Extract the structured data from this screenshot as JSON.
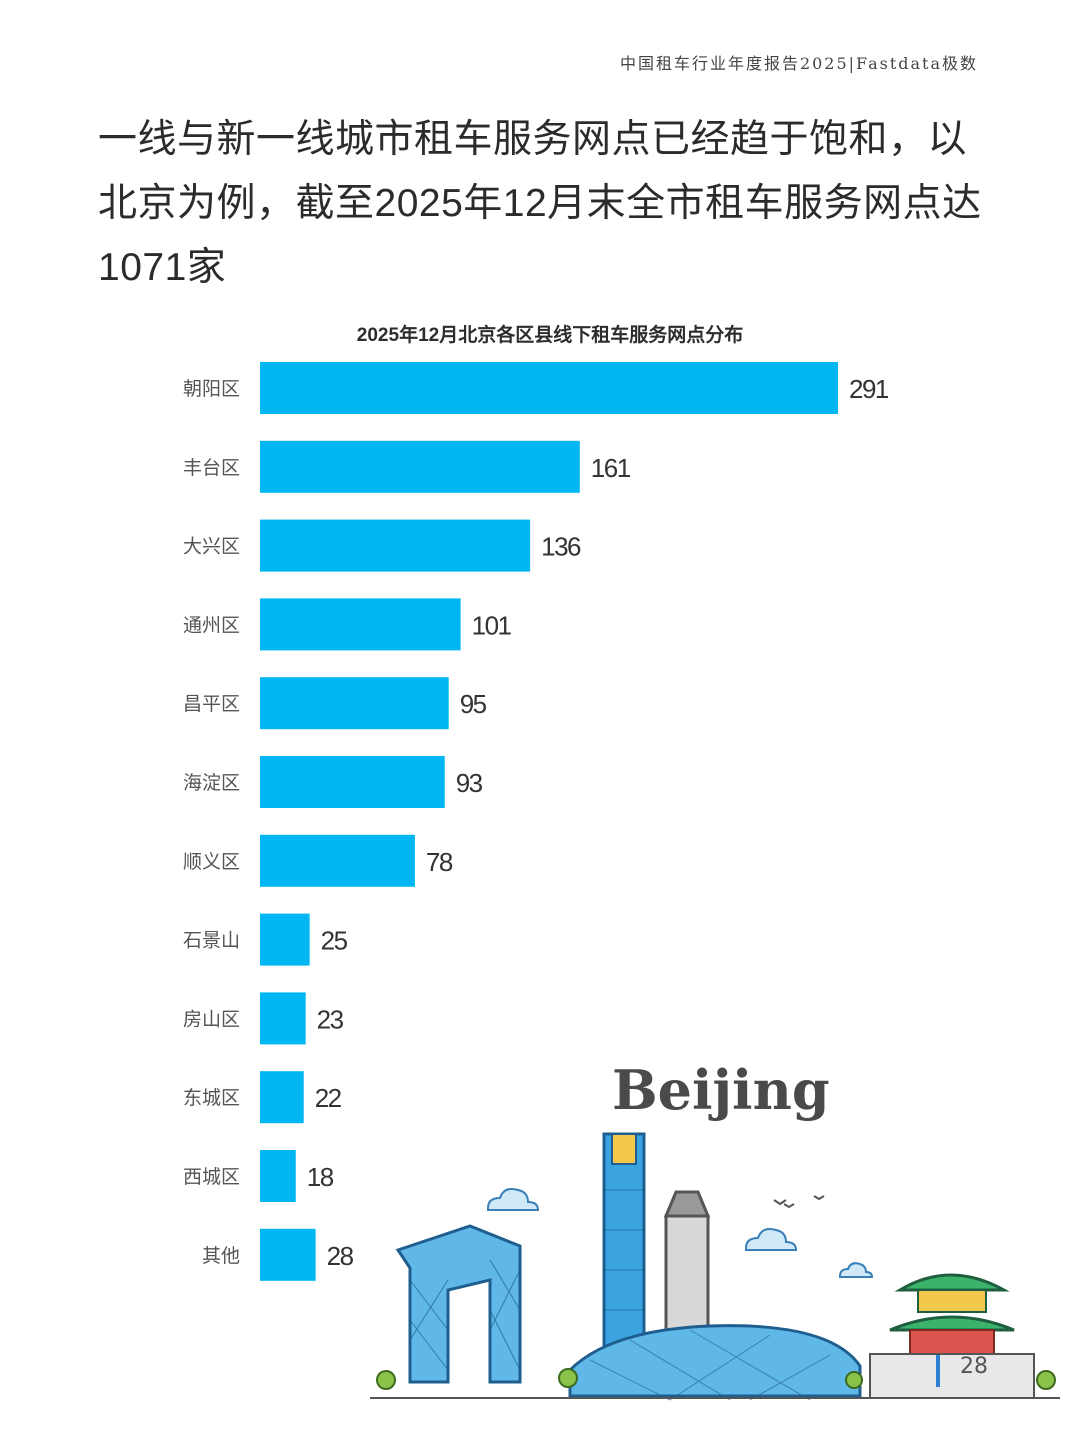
{
  "header": {
    "report_tag": "中国租车行业年度报告2025|Fastdata极数"
  },
  "headline": "一线与新一线城市租车服务网点已经趋于饱和，以北京为例，截至2025年12月末全市租车服务网点达1071家",
  "colors": {
    "bar": "#00b7f4",
    "text": "#333333"
  },
  "chart_data": {
    "type": "bar",
    "orientation": "horizontal",
    "title": "2025年12月北京各区县线下租车服务网点分布",
    "categories": [
      "朝阳区",
      "丰台区",
      "大兴区",
      "通州区",
      "昌平区",
      "海淀区",
      "顺义区",
      "石景山",
      "房山区",
      "东城区",
      "西城区",
      "其他"
    ],
    "values": [
      291,
      161,
      136,
      101,
      95,
      93,
      78,
      25,
      23,
      22,
      18,
      28
    ],
    "xlabel": "",
    "ylabel": "",
    "grid": false,
    "data_labels": true
  },
  "illustration": {
    "word": "Beijing",
    "page_number": "28"
  }
}
